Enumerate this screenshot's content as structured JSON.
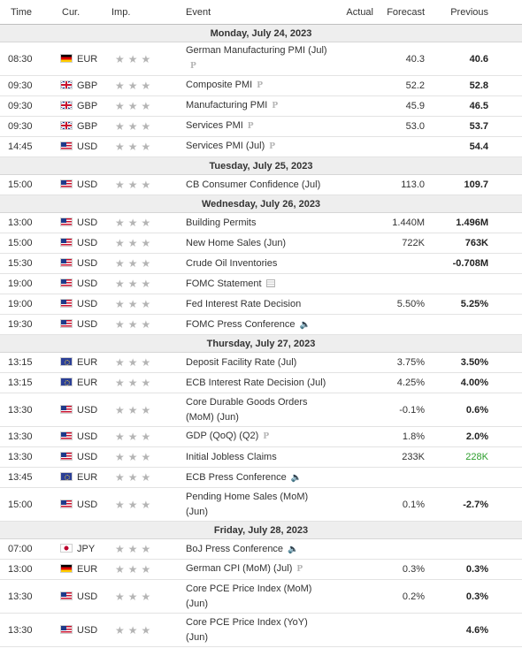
{
  "columns": {
    "time": "Time",
    "currency": "Cur.",
    "importance": "Imp.",
    "event": "Event",
    "actual": "Actual",
    "forecast": "Forecast",
    "previous": "Previous"
  },
  "days": [
    {
      "label": "Monday, July 24, 2023",
      "events": [
        {
          "time": "08:30",
          "flag": "de",
          "currency": "EUR",
          "event": "German Manufacturing PMI (Jul)",
          "tag": "p",
          "actual": "",
          "forecast": "40.3",
          "previous": "40.6",
          "tall": true
        },
        {
          "time": "09:30",
          "flag": "gb",
          "currency": "GBP",
          "event": "Composite PMI",
          "tag": "p",
          "actual": "",
          "forecast": "52.2",
          "previous": "52.8"
        },
        {
          "time": "09:30",
          "flag": "gb",
          "currency": "GBP",
          "event": "Manufacturing PMI",
          "tag": "p",
          "actual": "",
          "forecast": "45.9",
          "previous": "46.5"
        },
        {
          "time": "09:30",
          "flag": "gb",
          "currency": "GBP",
          "event": "Services PMI",
          "tag": "p",
          "actual": "",
          "forecast": "53.0",
          "previous": "53.7"
        },
        {
          "time": "14:45",
          "flag": "us",
          "currency": "USD",
          "event": "Services PMI (Jul)",
          "tag": "p",
          "actual": "",
          "forecast": "",
          "previous": "54.4"
        }
      ]
    },
    {
      "label": "Tuesday, July 25, 2023",
      "events": [
        {
          "time": "15:00",
          "flag": "us",
          "currency": "USD",
          "event": "CB Consumer Confidence (Jul)",
          "tag": "",
          "actual": "",
          "forecast": "113.0",
          "previous": "109.7"
        }
      ]
    },
    {
      "label": "Wednesday, July 26, 2023",
      "events": [
        {
          "time": "13:00",
          "flag": "us",
          "currency": "USD",
          "event": "Building Permits",
          "tag": "",
          "actual": "",
          "forecast": "1.440M",
          "previous": "1.496M"
        },
        {
          "time": "15:00",
          "flag": "us",
          "currency": "USD",
          "event": "New Home Sales (Jun)",
          "tag": "",
          "actual": "",
          "forecast": "722K",
          "previous": "763K"
        },
        {
          "time": "15:30",
          "flag": "us",
          "currency": "USD",
          "event": "Crude Oil Inventories",
          "tag": "",
          "actual": "",
          "forecast": "",
          "previous": "-0.708M"
        },
        {
          "time": "19:00",
          "flag": "us",
          "currency": "USD",
          "event": "FOMC Statement",
          "tag": "doc",
          "actual": "",
          "forecast": "",
          "previous": ""
        },
        {
          "time": "19:00",
          "flag": "us",
          "currency": "USD",
          "event": "Fed Interest Rate Decision",
          "tag": "",
          "actual": "",
          "forecast": "5.50%",
          "previous": "5.25%"
        },
        {
          "time": "19:30",
          "flag": "us",
          "currency": "USD",
          "event": "FOMC Press Conference",
          "tag": "sound",
          "actual": "",
          "forecast": "",
          "previous": ""
        }
      ]
    },
    {
      "label": "Thursday, July 27, 2023",
      "events": [
        {
          "time": "13:15",
          "flag": "eur",
          "currency": "EUR",
          "event": "Deposit Facility Rate (Jul)",
          "tag": "",
          "actual": "",
          "forecast": "3.75%",
          "previous": "3.50%"
        },
        {
          "time": "13:15",
          "flag": "eur",
          "currency": "EUR",
          "event": "ECB Interest Rate Decision (Jul)",
          "tag": "",
          "actual": "",
          "forecast": "4.25%",
          "previous": "4.00%"
        },
        {
          "time": "13:30",
          "flag": "us",
          "currency": "USD",
          "event": "Core Durable Goods Orders (MoM) (Jun)",
          "tag": "",
          "actual": "",
          "forecast": "-0.1%",
          "previous": "0.6%",
          "tall": true
        },
        {
          "time": "13:30",
          "flag": "us",
          "currency": "USD",
          "event": "GDP (QoQ) (Q2)",
          "tag": "p",
          "actual": "",
          "forecast": "1.8%",
          "previous": "2.0%"
        },
        {
          "time": "13:30",
          "flag": "us",
          "currency": "USD",
          "event": "Initial Jobless Claims",
          "tag": "",
          "actual": "",
          "forecast": "233K",
          "previous": "228K",
          "previous_color": "green"
        },
        {
          "time": "13:45",
          "flag": "eur",
          "currency": "EUR",
          "event": "ECB Press Conference",
          "tag": "sound",
          "actual": "",
          "forecast": "",
          "previous": ""
        },
        {
          "time": "15:00",
          "flag": "us",
          "currency": "USD",
          "event": "Pending Home Sales (MoM) (Jun)",
          "tag": "",
          "actual": "",
          "forecast": "0.1%",
          "previous": "-2.7%",
          "tall": true
        }
      ]
    },
    {
      "label": "Friday, July 28, 2023",
      "events": [
        {
          "time": "07:00",
          "flag": "jp",
          "currency": "JPY",
          "event": "BoJ Press Conference",
          "tag": "sound",
          "actual": "",
          "forecast": "",
          "previous": ""
        },
        {
          "time": "13:00",
          "flag": "de",
          "currency": "EUR",
          "event": "German CPI (MoM) (Jul)",
          "tag": "p",
          "actual": "",
          "forecast": "0.3%",
          "previous": "0.3%"
        },
        {
          "time": "13:30",
          "flag": "us",
          "currency": "USD",
          "event": "Core PCE Price Index (MoM) (Jun)",
          "tag": "",
          "actual": "",
          "forecast": "0.2%",
          "previous": "0.3%",
          "tall": true
        },
        {
          "time": "13:30",
          "flag": "us",
          "currency": "USD",
          "event": "Core PCE Price Index (YoY) (Jun)",
          "tag": "",
          "actual": "",
          "forecast": "",
          "previous": "4.6%",
          "tall": true
        }
      ]
    }
  ],
  "importance_stars": 3,
  "star_glyph": "★",
  "tag_glyphs": {
    "p": "P",
    "sound": "🔈",
    "doc": ""
  },
  "colors": {
    "green": "#2a9d2a",
    "star": "#b5b5b5",
    "day_bg": "#eeeeee"
  }
}
